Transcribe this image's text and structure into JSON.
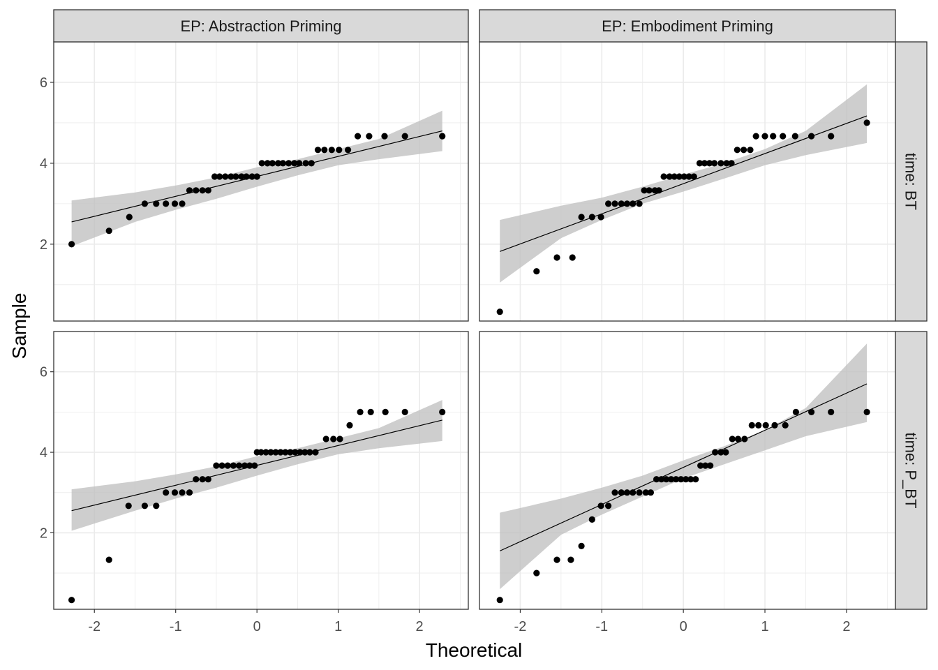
{
  "chart_data": {
    "type": "scatter",
    "subtype": "qq-plot facet grid with reference line and confidence band",
    "xlabel": "Theoretical",
    "ylabel": "Sample",
    "xlim": [
      -2.5,
      2.6
    ],
    "ylim": [
      0.1,
      7.0
    ],
    "x_ticks": [
      -2,
      -1,
      0,
      1,
      2
    ],
    "x_tick_labels": [
      "-2",
      "-1",
      "0",
      "1",
      "2"
    ],
    "y_ticks": [
      2,
      4,
      6
    ],
    "y_tick_labels": [
      "2",
      "4",
      "6"
    ],
    "grid": true,
    "col_labels": [
      "EP: Abstraction Priming",
      "EP: Embodiment Priming"
    ],
    "row_labels": [
      "time: BT",
      "time: P_BT"
    ],
    "colors": {
      "points": "#000000",
      "line": "#000000",
      "band": "#bebebe",
      "strip": "#d9d9d9",
      "grid": "#ebebeb",
      "border": "#333333"
    },
    "panels": [
      {
        "col": 0,
        "row": 0,
        "line": {
          "x": [
            -2.28,
            2.28
          ],
          "y": [
            2.55,
            4.8
          ]
        },
        "band": {
          "x": [
            -2.28,
            -1.5,
            -1.0,
            -0.5,
            0.0,
            0.5,
            1.0,
            1.5,
            2.28
          ],
          "upper": [
            3.08,
            3.28,
            3.45,
            3.65,
            3.9,
            4.1,
            4.35,
            4.6,
            5.3
          ],
          "lower": [
            1.95,
            2.55,
            2.85,
            3.12,
            3.42,
            3.7,
            3.95,
            4.1,
            4.3
          ]
        },
        "points": {
          "x": [
            -2.28,
            -1.82,
            -1.57,
            -1.38,
            -1.24,
            -1.12,
            -1.01,
            -0.92,
            -0.83,
            -0.75,
            -0.67,
            -0.6,
            -0.52,
            -0.46,
            -0.39,
            -0.32,
            -0.26,
            -0.19,
            -0.13,
            -0.06,
            0.0,
            0.06,
            0.13,
            0.19,
            0.26,
            0.32,
            0.39,
            0.46,
            0.52,
            0.6,
            0.67,
            0.75,
            0.83,
            0.92,
            1.01,
            1.12,
            1.24,
            1.38,
            1.57,
            1.82,
            2.28
          ],
          "y": [
            2.0,
            2.33,
            2.67,
            3.0,
            3.0,
            3.0,
            3.0,
            3.0,
            3.33,
            3.33,
            3.33,
            3.33,
            3.67,
            3.67,
            3.67,
            3.67,
            3.67,
            3.67,
            3.67,
            3.67,
            3.67,
            4.0,
            4.0,
            4.0,
            4.0,
            4.0,
            4.0,
            4.0,
            4.0,
            4.0,
            4.0,
            4.33,
            4.33,
            4.33,
            4.33,
            4.33,
            4.67,
            4.67,
            4.67,
            4.67,
            4.67
          ]
        }
      },
      {
        "col": 1,
        "row": 0,
        "line": {
          "x": [
            -2.25,
            2.25
          ],
          "y": [
            1.82,
            5.17
          ]
        },
        "band": {
          "x": [
            -2.25,
            -1.5,
            -1.0,
            -0.5,
            0.0,
            0.5,
            1.0,
            1.5,
            2.25
          ],
          "upper": [
            2.6,
            2.95,
            3.15,
            3.42,
            3.72,
            4.0,
            4.35,
            4.8,
            5.95
          ],
          "lower": [
            1.05,
            2.15,
            2.6,
            3.0,
            3.3,
            3.62,
            3.95,
            4.2,
            4.5
          ]
        },
        "points": {
          "x": [
            -2.25,
            -1.8,
            -1.55,
            -1.36,
            -1.25,
            -1.12,
            -1.01,
            -0.92,
            -0.84,
            -0.76,
            -0.69,
            -0.62,
            -0.54,
            -0.48,
            -0.42,
            -0.35,
            -0.3,
            -0.24,
            -0.17,
            -0.11,
            -0.05,
            0.01,
            0.07,
            0.13,
            0.2,
            0.26,
            0.32,
            0.38,
            0.46,
            0.53,
            0.59,
            0.66,
            0.74,
            0.82,
            0.89,
            1.0,
            1.1,
            1.22,
            1.37,
            1.57,
            1.81,
            2.25
          ],
          "y": [
            0.33,
            1.33,
            1.67,
            1.67,
            2.67,
            2.67,
            2.67,
            3.0,
            3.0,
            3.0,
            3.0,
            3.0,
            3.0,
            3.33,
            3.33,
            3.33,
            3.33,
            3.67,
            3.67,
            3.67,
            3.67,
            3.67,
            3.67,
            3.67,
            4.0,
            4.0,
            4.0,
            4.0,
            4.0,
            4.0,
            4.0,
            4.33,
            4.33,
            4.33,
            4.67,
            4.67,
            4.67,
            4.67,
            4.67,
            4.67,
            4.67,
            5.0
          ]
        }
      },
      {
        "col": 0,
        "row": 1,
        "line": {
          "x": [
            -2.28,
            2.28
          ],
          "y": [
            2.55,
            4.8
          ]
        },
        "band": {
          "x": [
            -2.28,
            -1.5,
            -1.0,
            -0.5,
            0.0,
            0.5,
            1.0,
            1.5,
            2.28
          ],
          "upper": [
            3.08,
            3.28,
            3.45,
            3.65,
            3.9,
            4.1,
            4.35,
            4.6,
            5.3
          ],
          "lower": [
            2.05,
            2.55,
            2.85,
            3.12,
            3.42,
            3.7,
            3.95,
            4.1,
            4.28
          ]
        },
        "points": {
          "x": [
            -2.28,
            -1.82,
            -1.58,
            -1.38,
            -1.24,
            -1.12,
            -1.01,
            -0.92,
            -0.83,
            -0.75,
            -0.67,
            -0.6,
            -0.5,
            -0.43,
            -0.36,
            -0.29,
            -0.22,
            -0.15,
            -0.09,
            -0.03,
            0.0,
            0.05,
            0.11,
            0.17,
            0.23,
            0.29,
            0.35,
            0.41,
            0.47,
            0.53,
            0.59,
            0.65,
            0.72,
            0.85,
            0.94,
            1.02,
            1.14,
            1.27,
            1.4,
            1.58,
            1.82,
            2.28
          ],
          "y": [
            0.33,
            1.33,
            2.67,
            2.67,
            2.67,
            3.0,
            3.0,
            3.0,
            3.0,
            3.33,
            3.33,
            3.33,
            3.67,
            3.67,
            3.67,
            3.67,
            3.67,
            3.67,
            3.67,
            3.67,
            4.0,
            4.0,
            4.0,
            4.0,
            4.0,
            4.0,
            4.0,
            4.0,
            4.0,
            4.0,
            4.0,
            4.0,
            4.0,
            4.33,
            4.33,
            4.33,
            4.67,
            5.0,
            5.0,
            5.0,
            5.0,
            5.0
          ]
        }
      },
      {
        "col": 1,
        "row": 1,
        "line": {
          "x": [
            -2.25,
            2.25
          ],
          "y": [
            1.55,
            5.7
          ]
        },
        "band": {
          "x": [
            -2.25,
            -1.5,
            -1.0,
            -0.5,
            0.0,
            0.5,
            1.0,
            1.5,
            2.25
          ],
          "upper": [
            2.5,
            2.85,
            3.12,
            3.42,
            3.8,
            4.15,
            4.55,
            5.1,
            6.7
          ],
          "lower": [
            0.6,
            1.95,
            2.45,
            2.9,
            3.35,
            3.7,
            4.05,
            4.4,
            4.75
          ]
        },
        "points": {
          "x": [
            -2.25,
            -1.8,
            -1.55,
            -1.38,
            -1.25,
            -1.12,
            -1.01,
            -0.92,
            -0.84,
            -0.76,
            -0.69,
            -0.62,
            -0.54,
            -0.46,
            -0.4,
            -0.33,
            -0.27,
            -0.21,
            -0.15,
            -0.09,
            -0.03,
            0.03,
            0.09,
            0.15,
            0.21,
            0.27,
            0.33,
            0.39,
            0.46,
            0.52,
            0.6,
            0.67,
            0.75,
            0.84,
            0.92,
            1.01,
            1.12,
            1.25,
            1.38,
            1.57,
            1.81,
            2.25
          ],
          "y": [
            0.33,
            1.0,
            1.33,
            1.33,
            1.67,
            2.33,
            2.67,
            2.67,
            3.0,
            3.0,
            3.0,
            3.0,
            3.0,
            3.0,
            3.0,
            3.33,
            3.33,
            3.33,
            3.33,
            3.33,
            3.33,
            3.33,
            3.33,
            3.33,
            3.67,
            3.67,
            3.67,
            4.0,
            4.0,
            4.0,
            4.33,
            4.33,
            4.33,
            4.67,
            4.67,
            4.67,
            4.67,
            4.67,
            5.0,
            5.0,
            5.0,
            5.0
          ]
        }
      }
    ]
  }
}
